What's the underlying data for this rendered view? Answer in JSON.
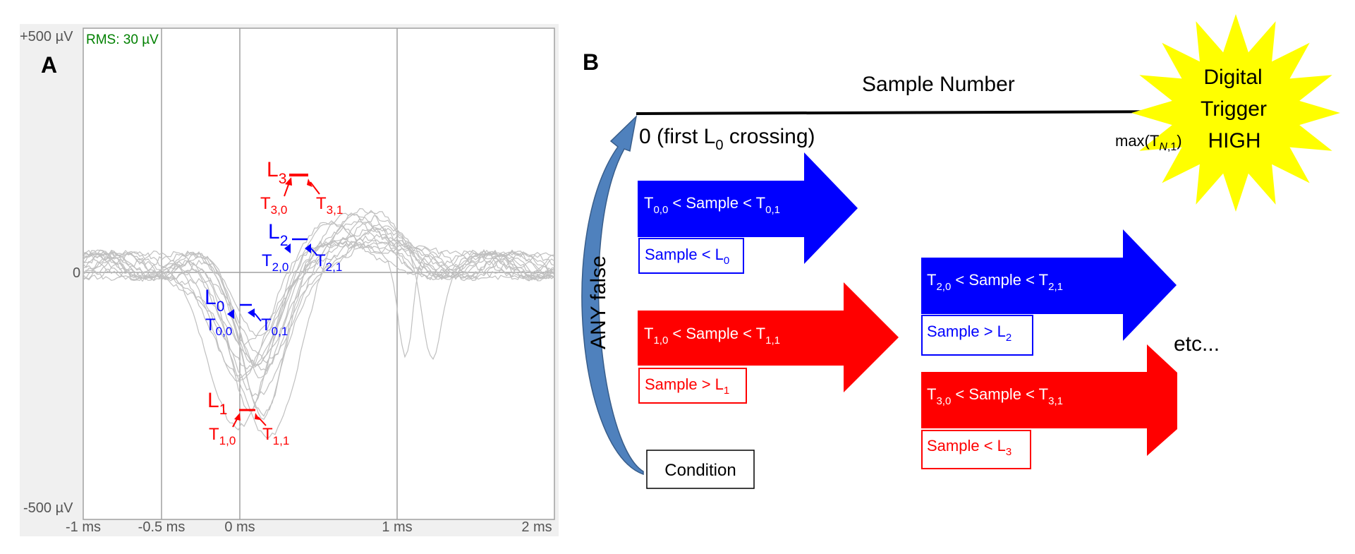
{
  "panel_a": {
    "label": "A",
    "rms": "RMS: 30 µV",
    "y_labels": [
      "+500 µV",
      "0",
      "-500 µV"
    ],
    "x_labels": [
      "-1 ms",
      "-0.5 ms",
      "0 ms",
      "1 ms",
      "2 ms"
    ],
    "markers": [
      {
        "L": "L",
        "Lsub": "3",
        "Ta": "T",
        "TaSub": "3,0",
        "Tb": "T",
        "TbSub": "3,1",
        "color": "#ff0000"
      },
      {
        "L": "L",
        "Lsub": "2",
        "Ta": "T",
        "TaSub": "2,0",
        "Tb": "T",
        "TbSub": "2,1",
        "color": "#0000ff"
      },
      {
        "L": "L",
        "Lsub": "0",
        "Ta": "T",
        "TaSub": "0,0",
        "Tb": "T",
        "TbSub": "0,1",
        "color": "#0000ff"
      },
      {
        "L": "L",
        "Lsub": "1",
        "Ta": "T",
        "TaSub": "1,0",
        "Tb": "T",
        "TbSub": "1,1",
        "color": "#ff0000"
      }
    ],
    "colors": {
      "frame_bg": "#f0f0f0",
      "grid": "#a0a0a0",
      "trace": "#c0c0c0",
      "rms": "#008000",
      "red": "#ff0000",
      "blue": "#0000ff"
    }
  },
  "panel_b": {
    "label": "B",
    "axis_title": "Sample Number",
    "origin_text": "0 (first L",
    "origin_sub": "0",
    "origin_tail": " crossing)",
    "max_text": "max(T",
    "max_sub_n": "N",
    "max_sub_rest": ",1",
    "max_close": ")",
    "star_lines": [
      "Digital",
      "Trigger",
      "HIGH"
    ],
    "loop_label": "ANY false",
    "condition_label": "Condition",
    "etc_label": "etc...",
    "arrows": [
      {
        "cmp_a": "T",
        "cmp_a_sub": "0,0",
        "cmp_mid": " < Sample < ",
        "cmp_b": "T",
        "cmp_b_sub": "0,1",
        "cond": "Sample < L",
        "cond_sub": "0",
        "color": "#0000ff"
      },
      {
        "cmp_a": "T",
        "cmp_a_sub": "1,0",
        "cmp_mid": " < Sample < ",
        "cmp_b": "T",
        "cmp_b_sub": "1,1",
        "cond": "Sample > L",
        "cond_sub": "1",
        "color": "#ff0000"
      },
      {
        "cmp_a": "T",
        "cmp_a_sub": "2,0",
        "cmp_mid": " < Sample < ",
        "cmp_b": "T",
        "cmp_b_sub": "2,1",
        "cond": "Sample > L",
        "cond_sub": "2",
        "color": "#0000ff"
      },
      {
        "cmp_a": "T",
        "cmp_a_sub": "3,0",
        "cmp_mid": " < Sample < ",
        "cmp_b": "T",
        "cmp_b_sub": "3,1",
        "cond": "Sample < L",
        "cond_sub": "3",
        "color": "#ff0000"
      }
    ],
    "colors": {
      "star": "#ffff00",
      "loop_arrow": "#4f81bd"
    }
  }
}
